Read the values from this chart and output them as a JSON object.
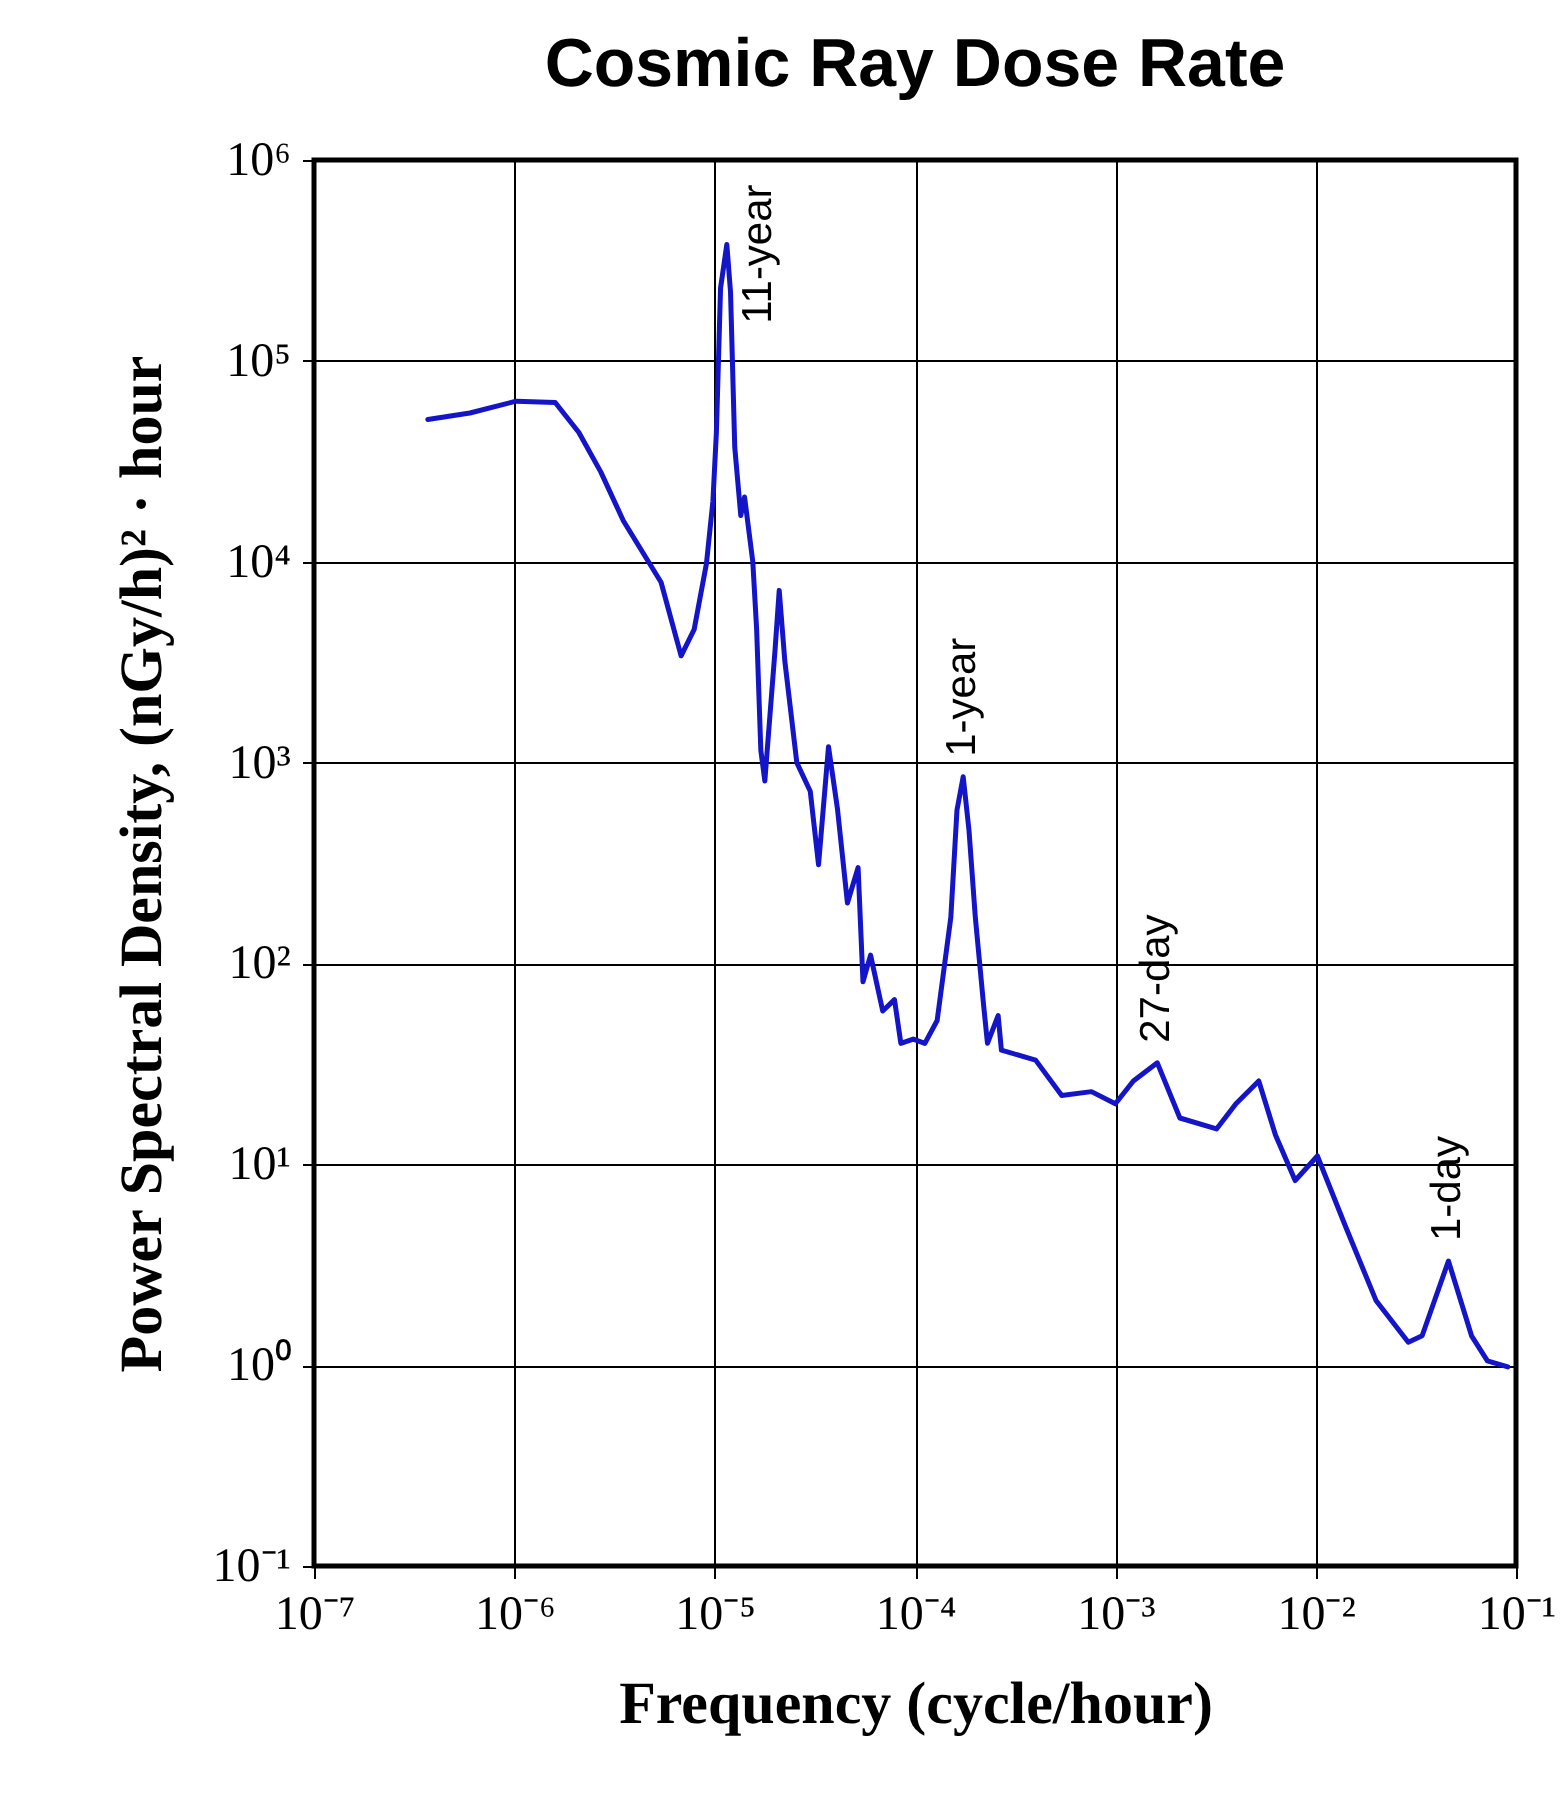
{
  "chart_data": {
    "type": "line",
    "title": "Cosmic Ray Dose Rate",
    "xlabel": "Frequency (cycle/hour)",
    "ylabel": "Power Spectral Density,  (nGy/h)² · hour",
    "log": "xy",
    "grid": true,
    "xlim": [
      1e-07,
      0.1
    ],
    "ylim": [
      0.1,
      1000000
    ],
    "xticks": [
      {
        "value": 1e-07,
        "label": "10⁻⁷"
      },
      {
        "value": 1e-06,
        "label": "10⁻⁶"
      },
      {
        "value": 1e-05,
        "label": "10⁻⁵"
      },
      {
        "value": 0.0001,
        "label": "10⁻⁴"
      },
      {
        "value": 0.001,
        "label": "10⁻³"
      },
      {
        "value": 0.01,
        "label": "10⁻²"
      },
      {
        "value": 0.1,
        "label": "10⁻¹"
      }
    ],
    "yticks": [
      {
        "value": 0.1,
        "label": "10⁻¹"
      },
      {
        "value": 1,
        "label": "10⁰"
      },
      {
        "value": 10,
        "label": "10¹"
      },
      {
        "value": 100,
        "label": "10²"
      },
      {
        "value": 1000,
        "label": "10³"
      },
      {
        "value": 10000,
        "label": "10⁴"
      },
      {
        "value": 100000,
        "label": "10⁵"
      },
      {
        "value": 1000000,
        "label": "10⁶"
      }
    ],
    "annotations": [
      {
        "text": "11-year",
        "x": 1.15e-05,
        "y": 380000
      },
      {
        "text": "1-year",
        "x": 0.000174,
        "y": 850
      },
      {
        "text": "27-day",
        "x": 0.00162,
        "y": 32
      },
      {
        "text": "1-day",
        "x": 0.046,
        "y": 3.3
      }
    ],
    "series": [
      {
        "color": "#1414c8",
        "x": [
          3.7e-07,
          6e-07,
          1.02e-06,
          1.6e-06,
          2.1e-06,
          2.7e-06,
          3.5e-06,
          5.4e-06,
          6.8e-06,
          7.9e-06,
          9.1e-06,
          9.8e-06,
          1.02e-05,
          1.07e-05,
          1.15e-05,
          1.2e-05,
          1.26e-05,
          1.35e-05,
          1.41e-05,
          1.55e-05,
          1.62e-05,
          1.7e-05,
          1.78e-05,
          2e-05,
          2.1e-05,
          2.24e-05,
          2.57e-05,
          3e-05,
          3.3e-05,
          3.7e-05,
          4.1e-05,
          4.6e-05,
          5.2e-05,
          5.5e-05,
          6e-05,
          6.9e-05,
          7.9e-05,
          8.5e-05,
          9.8e-05,
          0.000112,
          0.000129,
          0.000151,
          0.000162,
          0.000174,
          0.000186,
          0.0002,
          0.00022,
          0.00023,
          0.00026,
          0.00027,
          0.0004,
          0.00054,
          0.00076,
          0.001,
          0.00123,
          0.00162,
          0.0021,
          0.0032,
          0.004,
          0.0052,
          0.0063,
          0.0079,
          0.0102,
          0.0141,
          0.02,
          0.029,
          0.034,
          0.046,
          0.06,
          0.072,
          0.091
        ],
        "values": [
          51000,
          55000,
          63000,
          62000,
          44000,
          28000,
          16000,
          7900,
          3400,
          4600,
          9800,
          20000,
          44000,
          230000,
          380000,
          220000,
          37000,
          17000,
          21000,
          10000,
          4600,
          1150,
          810,
          3600,
          7200,
          3200,
          1000,
          720,
          310,
          1200,
          590,
          200,
          300,
          81,
          110,
          58,
          66,
          40,
          42,
          40,
          52,
          170,
          580,
          850,
          460,
          170,
          62,
          40,
          55,
          37,
          33,
          22,
          23,
          20,
          26,
          32,
          17,
          15,
          20,
          26,
          14,
          8.3,
          11,
          4.9,
          2.1,
          1.3,
          1.4,
          3.3,
          1.4,
          1.05,
          0.98
        ]
      }
    ]
  }
}
